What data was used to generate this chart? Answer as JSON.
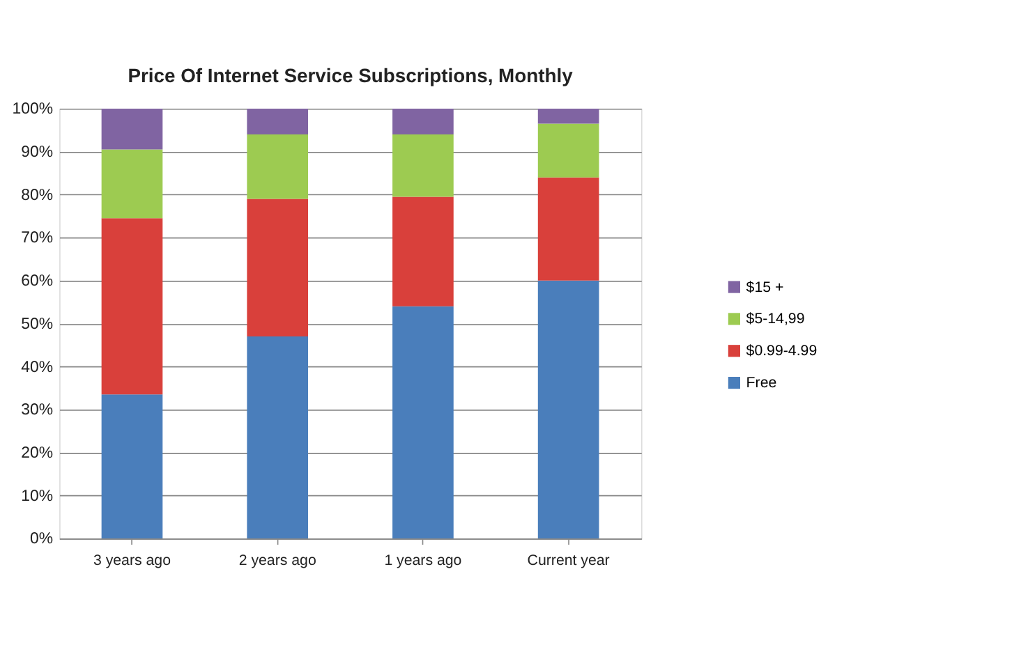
{
  "chart_data": {
    "type": "bar",
    "stacked": true,
    "title": "Price Of Internet Service Subscriptions, Monthly",
    "categories": [
      "3 years ago",
      "2 years ago",
      "1 years ago",
      "Current year"
    ],
    "series": [
      {
        "name": "Free",
        "color": "#4a7ebb",
        "values": [
          33.5,
          47,
          54,
          60
        ]
      },
      {
        "name": "$0.99-4.99",
        "color": "#d9403b",
        "values": [
          41,
          32,
          25.5,
          24
        ]
      },
      {
        "name": "$5-14,99",
        "color": "#9dcb51",
        "values": [
          16,
          15,
          14.5,
          12.5
        ]
      },
      {
        "name": "$15 +",
        "color": "#8064a2",
        "values": [
          9.5,
          6,
          6,
          3.5
        ]
      }
    ],
    "ylim": [
      0,
      100
    ],
    "yticks": [
      {
        "value": 0,
        "label": "0%"
      },
      {
        "value": 10,
        "label": "10%"
      },
      {
        "value": 20,
        "label": "20%"
      },
      {
        "value": 30,
        "label": "30%"
      },
      {
        "value": 40,
        "label": "40%"
      },
      {
        "value": 50,
        "label": "50%"
      },
      {
        "value": 60,
        "label": "60%"
      },
      {
        "value": 70,
        "label": "70%"
      },
      {
        "value": 80,
        "label": "80%"
      },
      {
        "value": 90,
        "label": "90%"
      },
      {
        "value": 100,
        "label": "100%"
      }
    ],
    "grid": "y",
    "legend": "right"
  }
}
